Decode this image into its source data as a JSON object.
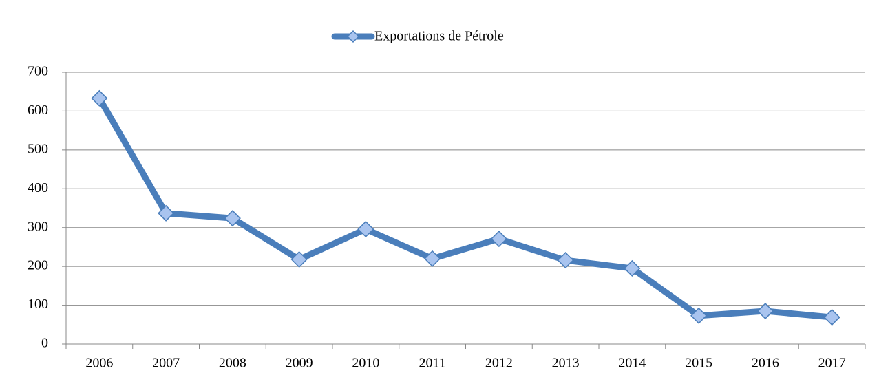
{
  "chart_data": {
    "type": "line",
    "categories": [
      "2006",
      "2007",
      "2008",
      "2009",
      "2010",
      "2011",
      "2012",
      "2013",
      "2014",
      "2015",
      "2016",
      "2017"
    ],
    "series": [
      {
        "name": "Exportations de Pétrole",
        "color": "#4a7ebb",
        "marker_color": "#a9c4ef",
        "values": [
          633,
          337,
          324,
          218,
          296,
          220,
          271,
          216,
          195,
          73,
          85,
          69
        ]
      }
    ],
    "ylim": [
      0,
      700
    ],
    "yticks": [
      0,
      100,
      200,
      300,
      400,
      500,
      600,
      700
    ],
    "grid": true,
    "legend": "top"
  }
}
